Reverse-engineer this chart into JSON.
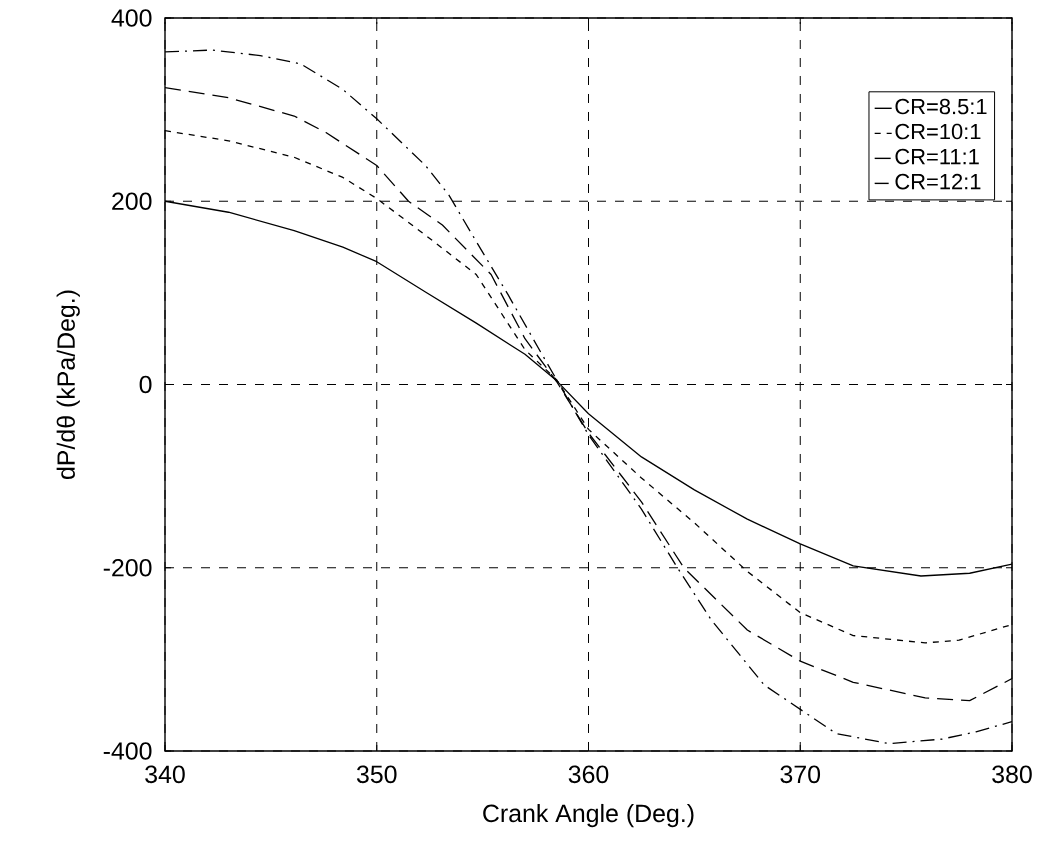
{
  "chart_data": {
    "type": "line",
    "xlabel": "Crank Angle (Deg.)",
    "ylabel": "dP/dθ  (kPa/Deg.)",
    "xlim": [
      340,
      380
    ],
    "ylim": [
      -400,
      400
    ],
    "xticks": [
      340,
      350,
      360,
      370,
      380
    ],
    "yticks": [
      -400,
      -200,
      0,
      200,
      400
    ],
    "grid": true,
    "legend": "top right",
    "marker": "none",
    "series": [
      {
        "name": "CR=8.5:1",
        "color": "#000000",
        "line_style": "solid",
        "x": [
          340,
          343,
          346.1,
          348.4,
          350,
          352.3,
          354.7,
          357,
          358.5,
          360,
          362.5,
          365,
          367.5,
          370,
          372.5,
          375.7,
          378,
          380
        ],
        "values": [
          200,
          188,
          168,
          150,
          134,
          101,
          67,
          33,
          4,
          -32,
          -79,
          -115,
          -147,
          -174,
          -198,
          -209,
          -206,
          -196
        ]
      },
      {
        "name": "CR=10:1",
        "color": "#000000",
        "line_style": "dashed",
        "x": [
          340,
          343,
          346.1,
          348.4,
          350,
          352.3,
          354.7,
          357,
          358.5,
          360,
          362.5,
          365,
          367.5,
          370,
          372.5,
          375.9,
          377.5,
          380
        ],
        "values": [
          277,
          266,
          248,
          226,
          203,
          163,
          120,
          38,
          5,
          -49,
          -102,
          -151,
          -204,
          -249,
          -274,
          -282,
          -279,
          -262
        ]
      },
      {
        "name": "CR=11:1",
        "color": "#000000",
        "line_style": "longdashed",
        "x": [
          340,
          343,
          346.1,
          347.6,
          350,
          351.5,
          353.1,
          355.4,
          357,
          358.5,
          360,
          362.5,
          364.5,
          367.5,
          370,
          372.5,
          375.9,
          378,
          380
        ],
        "values": [
          324,
          313,
          293,
          275,
          239,
          200,
          174,
          120,
          50,
          3,
          -53,
          -128,
          -200,
          -268,
          -302,
          -325,
          -342,
          -345,
          -321
        ]
      },
      {
        "name": "CR=12:1",
        "color": "#000000",
        "line_style": "dashdot",
        "x": [
          340,
          342.2,
          344.5,
          346.4,
          348.4,
          350,
          352.3,
          353.4,
          354.7,
          356.2,
          357.8,
          360,
          362.5,
          364.2,
          365.8,
          368.3,
          371.7,
          374.2,
          376.7,
          378.3,
          380
        ],
        "values": [
          363,
          365,
          359,
          350,
          322,
          290,
          239,
          207,
          156,
          98,
          33,
          -55,
          -136,
          -200,
          -257,
          -328,
          -381,
          -392,
          -387,
          -379,
          -368
        ]
      }
    ]
  }
}
